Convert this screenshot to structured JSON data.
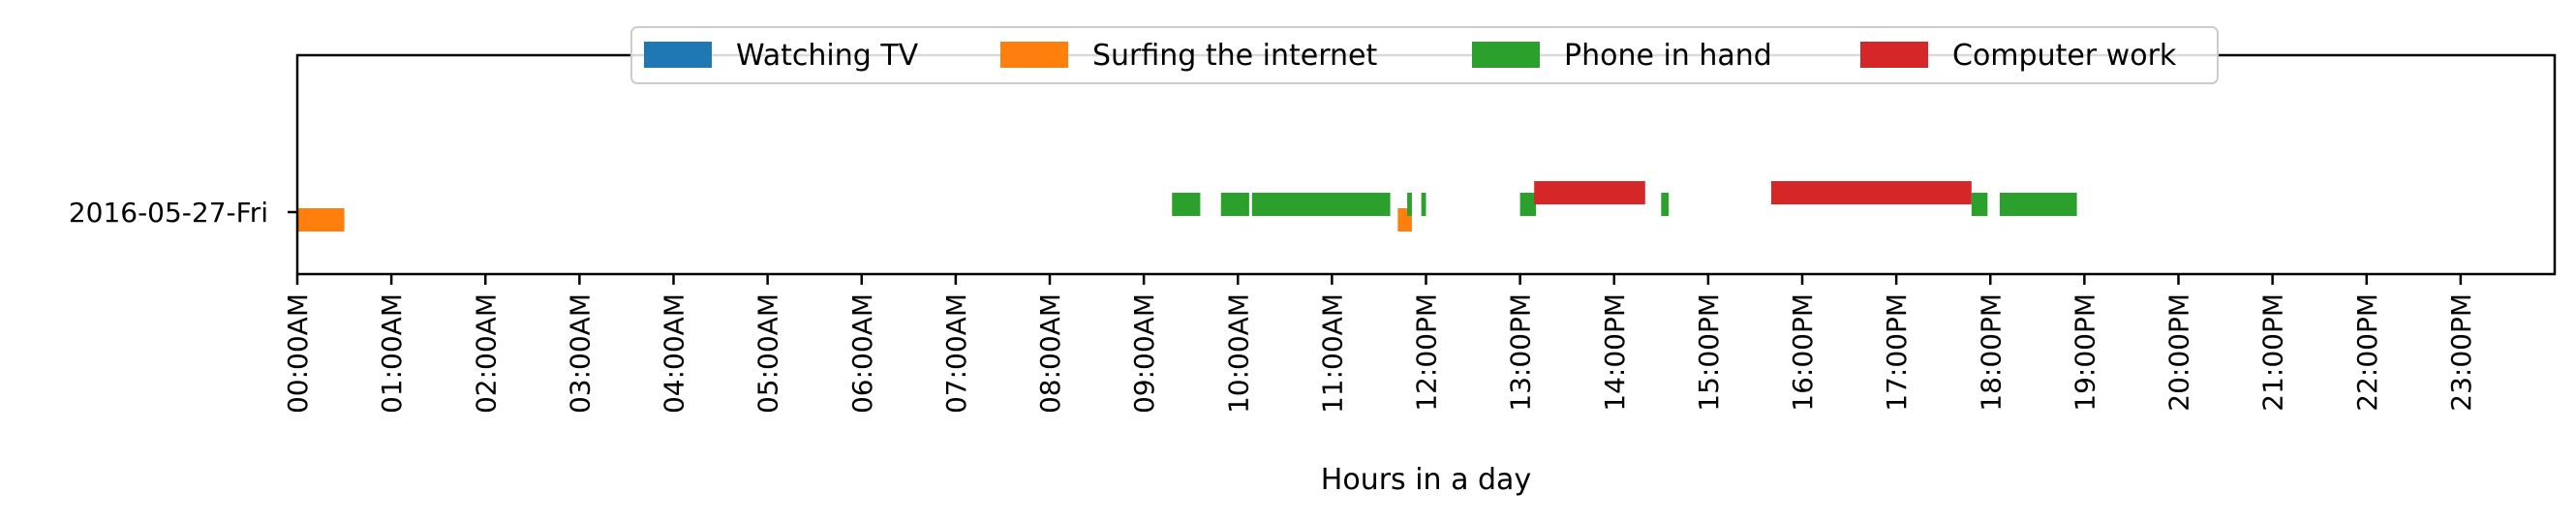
{
  "chart_data": {
    "type": "timeline",
    "xlabel": "Hours in a day",
    "ylabel": "",
    "title": "",
    "xlim": [
      0,
      24
    ],
    "x_ticks": [
      "00:00AM",
      "01:00AM",
      "02:00AM",
      "03:00AM",
      "04:00AM",
      "05:00AM",
      "06:00AM",
      "07:00AM",
      "08:00AM",
      "09:00AM",
      "10:00AM",
      "11:00AM",
      "12:00PM",
      "13:00PM",
      "14:00PM",
      "15:00PM",
      "16:00PM",
      "17:00PM",
      "18:00PM",
      "19:00PM",
      "20:00PM",
      "21:00PM",
      "22:00PM",
      "23:00PM"
    ],
    "rows": [
      "2016-05-27-Fri"
    ],
    "legend_position": "top-center",
    "grid": false,
    "series": [
      {
        "name": "Watching TV",
        "color": "#1f77b4",
        "segments": []
      },
      {
        "name": "Surfing the internet",
        "color": "#ff7f0e",
        "segments": [
          [
            0.0,
            0.5
          ],
          [
            11.7,
            11.85
          ]
        ]
      },
      {
        "name": "Phone in hand",
        "color": "#2ca02c",
        "segments": [
          [
            9.3,
            9.6
          ],
          [
            9.82,
            10.12
          ],
          [
            10.15,
            11.62
          ],
          [
            11.8,
            11.85
          ],
          [
            11.95,
            12.0
          ],
          [
            13.0,
            13.17
          ],
          [
            14.5,
            14.58
          ],
          [
            17.8,
            17.97
          ],
          [
            18.1,
            18.92
          ]
        ]
      },
      {
        "name": "Computer work",
        "color": "#d62728",
        "segments": [
          [
            13.15,
            14.33
          ],
          [
            15.67,
            17.8
          ]
        ]
      }
    ]
  }
}
